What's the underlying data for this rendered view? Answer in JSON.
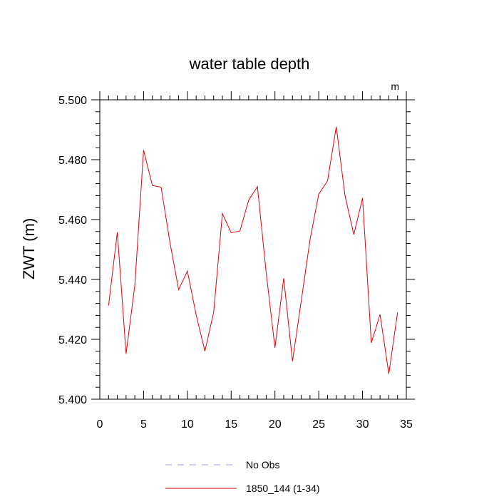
{
  "chart_data": {
    "type": "line",
    "title": "water table depth",
    "ylabel": "ZWT  (m)",
    "xlabel": "",
    "units_label": "m",
    "xlim": [
      0,
      35
    ],
    "ylim": [
      5.4,
      5.5
    ],
    "x_ticks": [
      0,
      5,
      10,
      15,
      20,
      25,
      30,
      35
    ],
    "x_tick_labels": [
      "0",
      "5",
      "10",
      "15",
      "20",
      "25",
      "30",
      "35"
    ],
    "y_ticks": [
      5.4,
      5.42,
      5.44,
      5.46,
      5.48,
      5.5
    ],
    "y_tick_labels": [
      "5.400",
      "5.420",
      "5.440",
      "5.460",
      "5.480",
      "5.500"
    ],
    "grid": false,
    "legend_placement": "bottom",
    "series": [
      {
        "name": "1850_144 (1-34)",
        "color": "#e8000b",
        "style": "solid",
        "x": [
          1,
          2,
          3,
          4,
          5,
          6,
          7,
          8,
          9,
          10,
          11,
          12,
          13,
          14,
          15,
          16,
          17,
          18,
          19,
          20,
          21,
          22,
          23,
          24,
          25,
          26,
          27,
          28,
          29,
          30,
          31,
          32,
          33,
          34
        ],
        "values": [
          5.4313,
          5.4558,
          5.4152,
          5.438,
          5.4832,
          5.4714,
          5.4708,
          5.4525,
          5.4366,
          5.4428,
          5.4282,
          5.416,
          5.429,
          5.462,
          5.4556,
          5.4562,
          5.4665,
          5.471,
          5.4422,
          5.4172,
          5.4404,
          5.4127,
          5.4328,
          5.4532,
          5.4685,
          5.4729,
          5.491,
          5.468,
          5.455,
          5.4672,
          5.4188,
          5.4283,
          5.4085,
          5.429
        ]
      },
      {
        "name": "No Obs",
        "color": "#9a9af0",
        "style": "dashed",
        "x": [],
        "values": []
      }
    ]
  }
}
